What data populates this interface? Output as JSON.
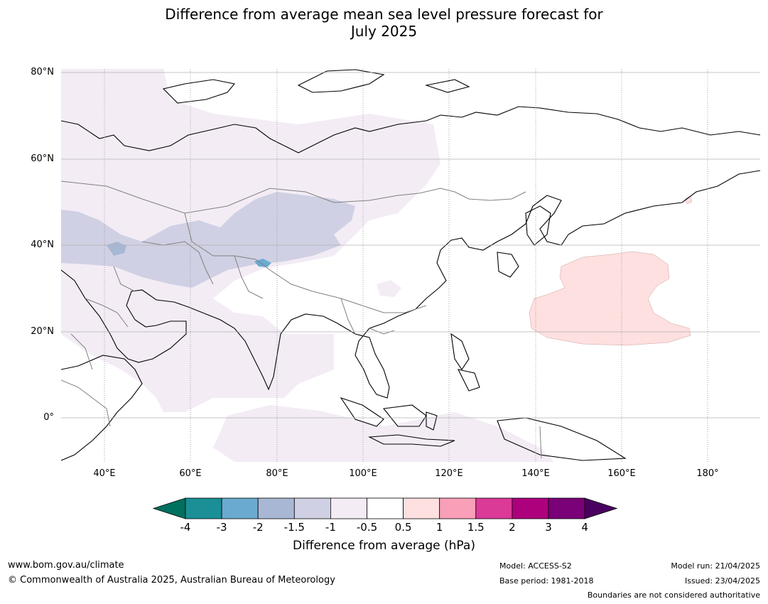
{
  "title_line1": "Difference from average mean sea level pressure forecast for",
  "title_line2": "July 2025",
  "map": {
    "lat_labels": [
      "80°N",
      "60°N",
      "40°N",
      "20°N",
      "0°"
    ],
    "lon_labels": [
      "40°E",
      "60°E",
      "80°E",
      "100°E",
      "120°E",
      "140°E",
      "160°E",
      "180°"
    ],
    "lat_range": [
      -10,
      81
    ],
    "lon_range": [
      30,
      192
    ],
    "colors": {
      "land_outline": "#000000",
      "borders": "#808080",
      "grid": "#b0b0b0",
      "anom_neg_0_5_to_1": "#f3ecf5",
      "anom_neg_1_to_1_5": "#d0d0e4",
      "anom_neg_1_5_to_2": "#a8b8d4",
      "anom_neg_2_to_3": "#6aaad0",
      "anom_pos_0_5_to_1": "#fde0df"
    }
  },
  "colorbar": {
    "title": "Difference from average (hPa)",
    "ticks": [
      "-4",
      "-3",
      "-2",
      "-1.5",
      "-1",
      "-0.5",
      "0.5",
      "1",
      "1.5",
      "2",
      "3",
      "4"
    ],
    "colors": [
      "#1a8f96",
      "#6aaad0",
      "#a8b8d4",
      "#d0d0e4",
      "#f3ecf5",
      "#ffffff",
      "#fde0df",
      "#f99fb8",
      "#db3a97",
      "#ad007d",
      "#7a0177"
    ],
    "under_color": "#00705f",
    "over_color": "#4a0060"
  },
  "footer": {
    "website": "www.bom.gov.au/climate",
    "copyright": "© Commonwealth of Australia 2025, Australian Bureau of Meteorology",
    "model": "Model: ACCESS-S2",
    "base_period": "Base period: 1981-2018",
    "model_run": "Model run: 21/04/2025",
    "issued": "Issued: 23/04/2025",
    "disclaimer": "Boundaries are not considered authoritative"
  }
}
